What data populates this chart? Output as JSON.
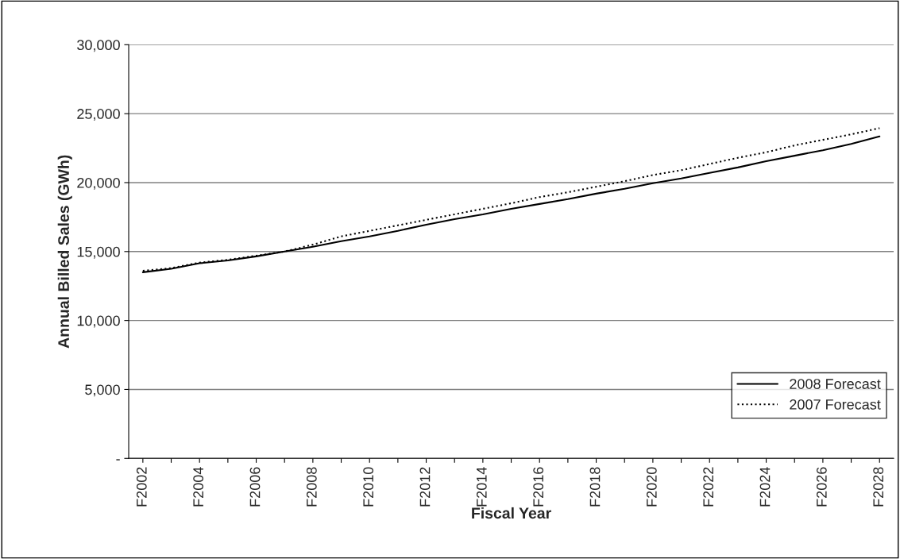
{
  "chart_data": {
    "type": "line",
    "xlabel": "Fiscal Year",
    "ylabel": "Annual Billed Sales (GWh)",
    "categories": [
      "F2002",
      null,
      "F2004",
      null,
      "F2006",
      null,
      "F2008",
      null,
      "F2010",
      null,
      "F2012",
      null,
      "F2014",
      null,
      "F2016",
      null,
      "F2018",
      null,
      "F2020",
      null,
      "F2022",
      null,
      "F2024",
      null,
      "F2026",
      null,
      "F2028"
    ],
    "series": [
      {
        "name": "2008 Forecast",
        "color": "#000000",
        "line_style": "solid",
        "values": [
          13500,
          13750,
          14150,
          14350,
          14650,
          15000,
          15350,
          15750,
          16100,
          16500,
          16950,
          17350,
          17700,
          18100,
          18450,
          18800,
          19200,
          19550,
          19950,
          20300,
          20700,
          21100,
          21550,
          21950,
          22350,
          22800,
          23350
        ]
      },
      {
        "name": "2007 Forecast",
        "color": "#000000",
        "line_style": "dotted",
        "values": [
          13600,
          13800,
          14200,
          14400,
          14700,
          15000,
          15500,
          16100,
          16500,
          16900,
          17300,
          17700,
          18100,
          18500,
          18950,
          19300,
          19700,
          20100,
          20550,
          20900,
          21350,
          21800,
          22200,
          22700,
          23100,
          23500,
          23950
        ]
      }
    ],
    "ylim": [
      0,
      30000
    ],
    "yticks": [
      {
        "value": 0,
        "label": "-"
      },
      {
        "value": 5000,
        "label": "5,000"
      },
      {
        "value": 10000,
        "label": "10,000"
      },
      {
        "value": 15000,
        "label": "15,000"
      },
      {
        "value": 20000,
        "label": "20,000"
      },
      {
        "value": 25000,
        "label": "25,000"
      },
      {
        "value": 30000,
        "label": "30,000"
      }
    ],
    "grid": "y",
    "legend": "bottom right",
    "marker": "none"
  }
}
